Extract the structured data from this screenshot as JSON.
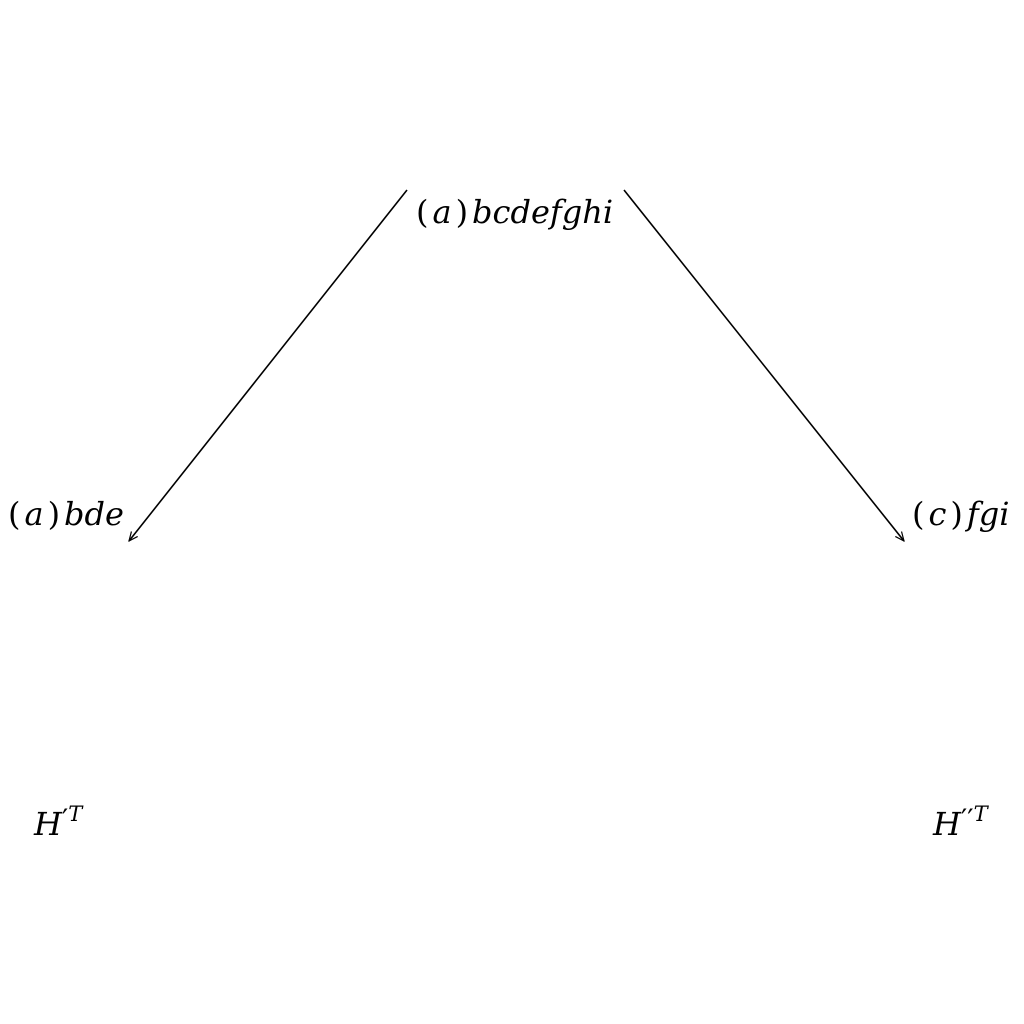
{
  "nodes": {
    "root": {
      "paren": "a",
      "rest": "bcdefghi"
    },
    "left": {
      "paren": "a",
      "rest": "bde"
    },
    "right": {
      "paren": "c",
      "rest": "fgi"
    }
  },
  "labels": {
    "left_tree": {
      "base": "H",
      "primes": "′",
      "sup": "T"
    },
    "right_tree": {
      "base": "H",
      "primes": "′′",
      "sup": "T"
    }
  }
}
